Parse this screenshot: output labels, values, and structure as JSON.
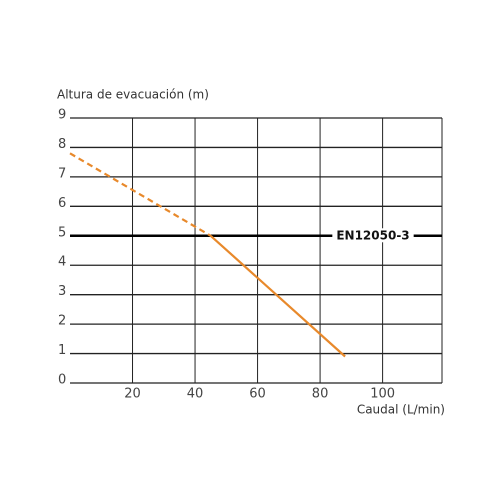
{
  "chart_data": {
    "type": "line",
    "y_label": "Altura de evacuación (m)",
    "x_label": "Caudal (L/min)",
    "x": [
      0,
      45,
      88
    ],
    "series": [
      {
        "name": "dashed",
        "color": "#e8892b",
        "dashed": true,
        "values": [
          7.8,
          5.0,
          null
        ]
      },
      {
        "name": "solid",
        "color": "#e8892b",
        "dashed": false,
        "values": [
          null,
          5.0,
          0.9
        ]
      }
    ],
    "xlim": [
      0,
      119
    ],
    "xticks": [
      20,
      40,
      60,
      80,
      100
    ],
    "ylim": [
      0,
      9
    ],
    "yticks": [
      0,
      1,
      2,
      3,
      4,
      5,
      6,
      7,
      8,
      9
    ],
    "grid": true,
    "reference_line": {
      "label": "EN12050-3",
      "value": 5
    }
  }
}
